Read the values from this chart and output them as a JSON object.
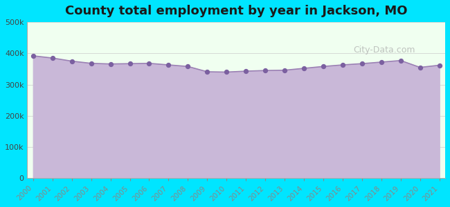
{
  "title": "County total employment by year in Jackson, MO",
  "background_color": "#00e5ff",
  "plot_bg_color": "#f0fff0",
  "fill_color": "#c9b8d8",
  "line_color": "#9b80b4",
  "dot_color": "#7b60a0",
  "years": [
    2000,
    2001,
    2002,
    2003,
    2004,
    2005,
    2006,
    2007,
    2008,
    2009,
    2010,
    2011,
    2012,
    2013,
    2014,
    2015,
    2016,
    2017,
    2018,
    2019,
    2020,
    2021
  ],
  "values": [
    392000,
    385000,
    375000,
    368000,
    366000,
    367000,
    368000,
    363000,
    358000,
    341000,
    340000,
    343000,
    345000,
    346000,
    352000,
    358000,
    363000,
    367000,
    372000,
    377000,
    355000,
    362000
  ],
  "ylim": [
    0,
    500000
  ],
  "yticks": [
    0,
    100000,
    200000,
    300000,
    400000,
    500000
  ],
  "watermark": "City-Data.com"
}
